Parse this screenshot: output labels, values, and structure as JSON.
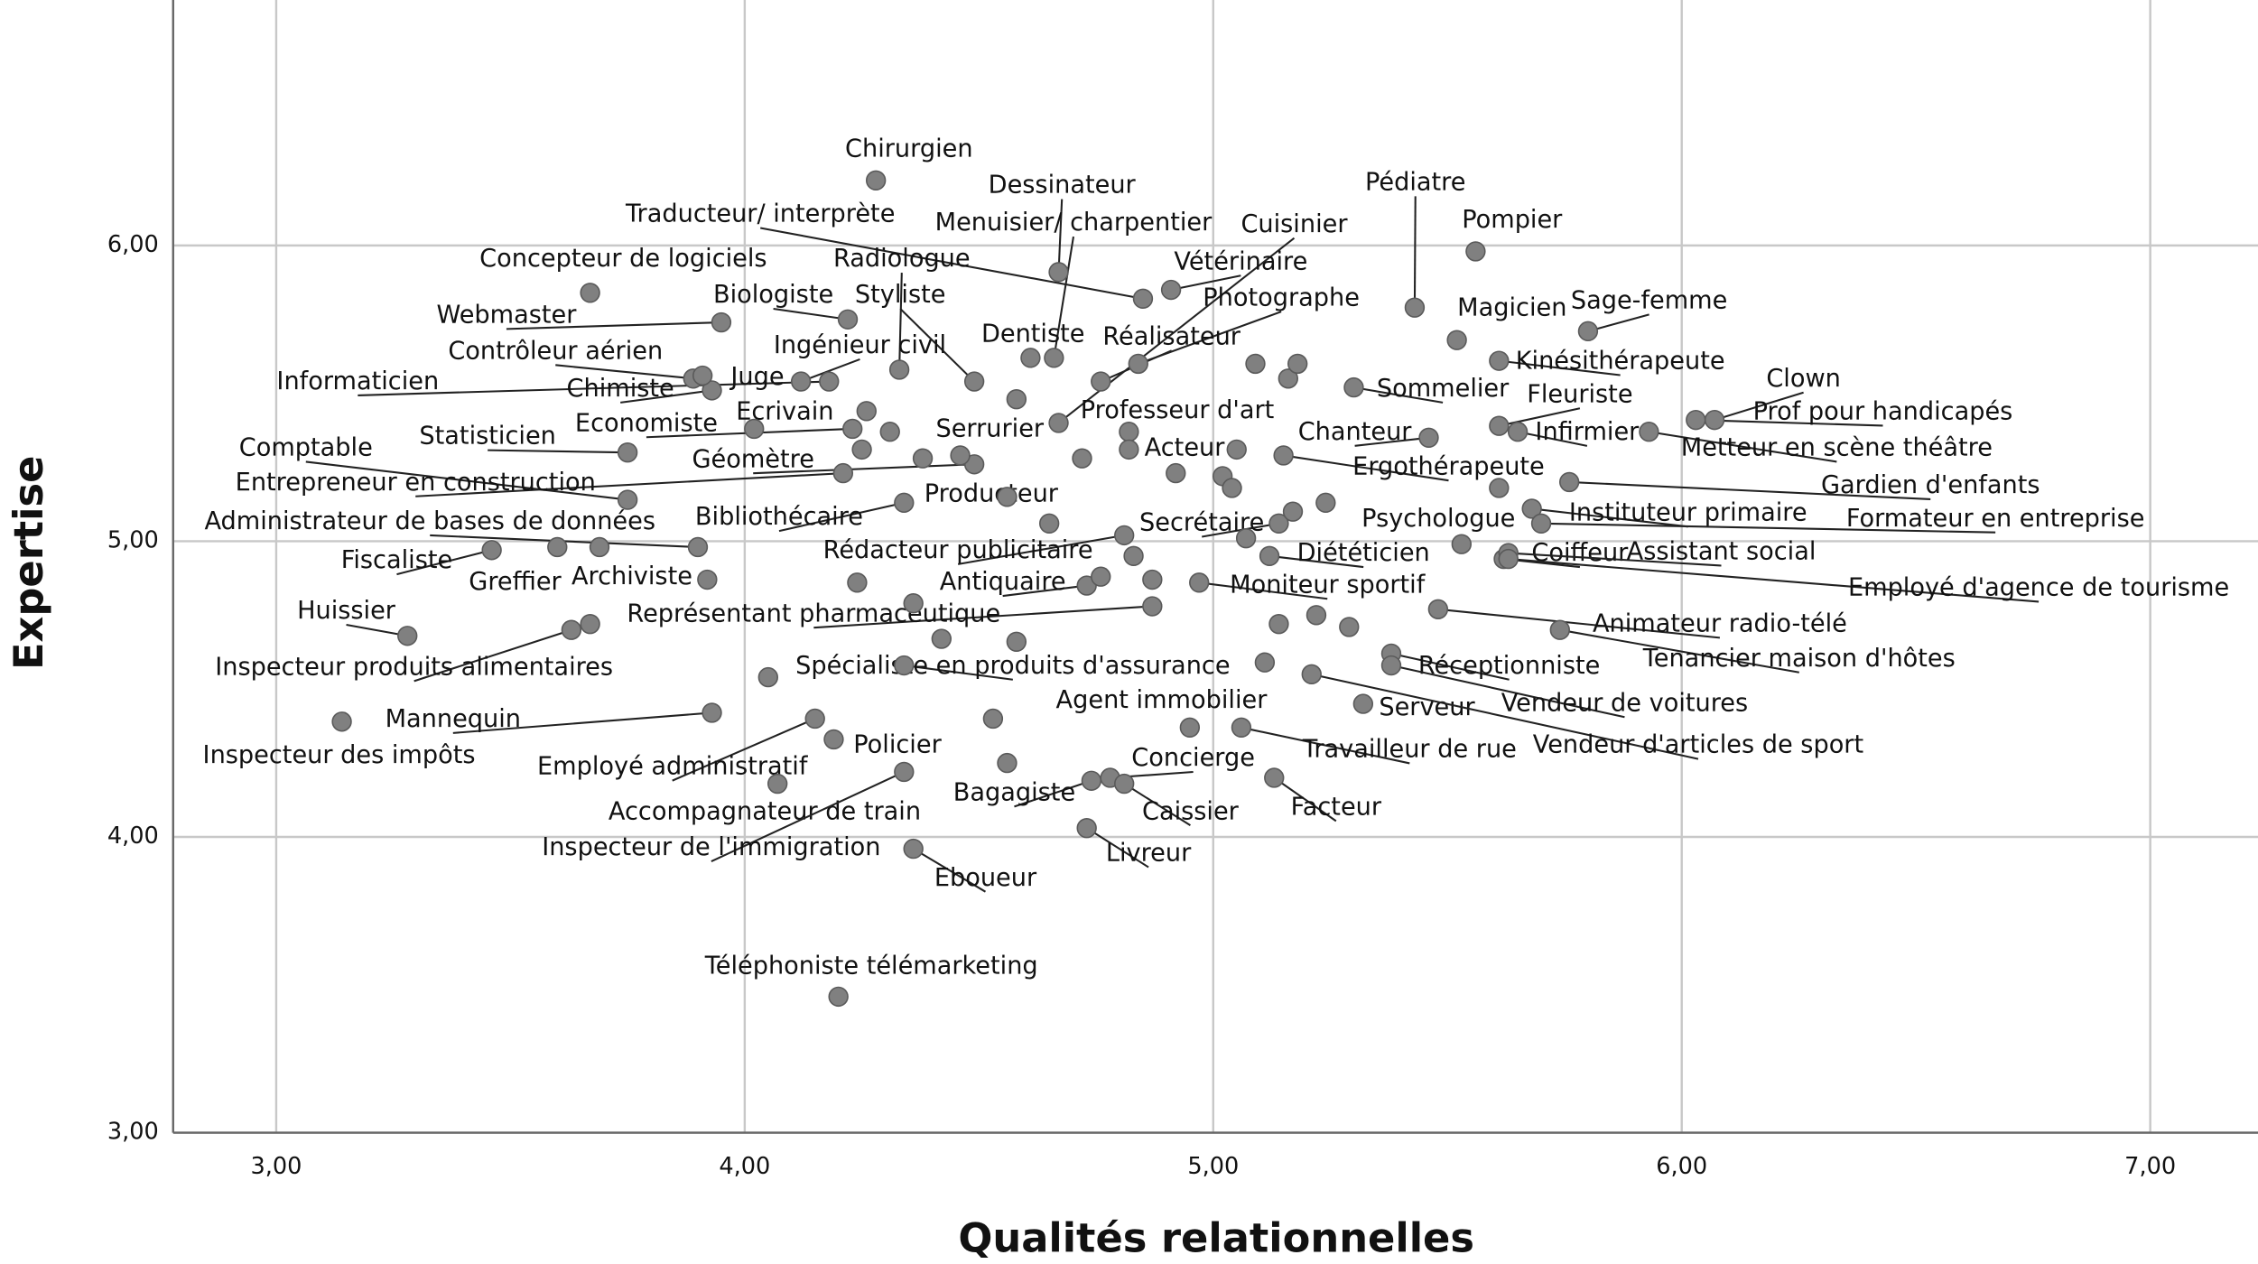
{
  "chart_data": {
    "type": "scatter",
    "xlabel": "Qualités relationnelles",
    "ylabel": "Expertise",
    "color": "#808080",
    "grid": true,
    "xlim": [
      2.78,
      7.23
    ],
    "ylim": [
      3,
      6.83
    ],
    "xticks": [
      {
        "value": 3,
        "label": "3,00"
      },
      {
        "value": 4,
        "label": "4,00"
      },
      {
        "value": 5,
        "label": "5,00"
      },
      {
        "value": 6,
        "label": "6,00"
      },
      {
        "value": 7,
        "label": "7,00"
      }
    ],
    "yticks": [
      {
        "value": 3,
        "label": "3,00"
      },
      {
        "value": 4,
        "label": "4,00"
      },
      {
        "value": 5,
        "label": "5,00"
      },
      {
        "value": 6,
        "label": "6,00"
      }
    ],
    "labels": [
      "Chirurgien",
      "Pompier",
      "Pédiatre",
      "Dessinateur",
      "Traducteur/ interprète",
      "Menuisier/ charpentier",
      "Cuisinier",
      "Vétérinaire",
      "Photographe",
      "Concepteur de logiciels",
      "Radiologue",
      "Biologiste",
      "Styliste",
      "Webmaster",
      "Magicien",
      "Sage-femme",
      "Contrôleur aérien",
      "Ingénieur civil",
      "Dentiste",
      "Réalisateur",
      "Kinésithérapeute",
      "Clown",
      "Informaticien",
      "Chimiste",
      "Juge",
      "Sommelier",
      "Fleuriste",
      "Ecrivain",
      "Professeur d'art",
      "Prof pour handicapés",
      "Economiste",
      "Serrurier",
      "Chanteur",
      "Infirmier",
      "Statisticien",
      "Comptable",
      "Acteur",
      "Metteur en scène théâtre",
      "Géomètre",
      "Ergothérapeute",
      "Entrepreneur en construction",
      "Gardien d'enfants",
      "Producteur",
      "Administrateur de bases de données",
      "Bibliothécaire",
      "Secrétaire",
      "Psychologue",
      "Instituteur primaire",
      "Formateur en entreprise",
      "Fiscaliste",
      "Rédacteur publicitaire",
      "Diététicien",
      "Coiffeur",
      "Assistant social",
      "Greffier",
      "Archiviste",
      "Antiquaire",
      "Moniteur sportif",
      "Employé d'agence de tourisme",
      "Huissier",
      "Représentant pharmaceutique",
      "Animateur radio-télé",
      "Inspecteur produits alimentaires",
      "Spécialiste en produits d'assurance",
      "Réceptionniste",
      "Tenancier maison d'hôtes",
      "Agent immobilier",
      "Serveur",
      "Vendeur de voitures",
      "Mannequin",
      "Inspecteur des impôts",
      "Policier",
      "Travailleur de rue",
      "Vendeur d'articles de sport",
      "Employé administratif",
      "Concierge",
      "Accompagnateur de train",
      "Bagagiste",
      "Caissier",
      "Facteur",
      "Inspecteur de l'immigration",
      "Livreur",
      "Eboueur",
      "Téléphoniste télémarketing",
      null,
      null,
      null,
      null,
      null,
      null,
      null,
      null,
      null,
      null,
      null,
      null,
      null,
      null,
      null,
      null,
      null,
      null,
      null,
      null,
      null,
      null,
      null,
      null,
      null,
      null,
      null,
      null,
      null,
      null,
      null,
      null,
      null
    ],
    "x": [
      4.28,
      5.56,
      5.43,
      4.67,
      4.85,
      4.66,
      4.67,
      4.91,
      4.84,
      3.67,
      4.33,
      4.22,
      4.49,
      3.95,
      5.52,
      5.8,
      3.89,
      4.12,
      4.61,
      4.76,
      5.61,
      6.07,
      4.18,
      3.93,
      3.91,
      5.3,
      5.61,
      4.02,
      4.82,
      6.03,
      4.23,
      4.58,
      5.46,
      5.65,
      3.75,
      3.75,
      5.05,
      5.93,
      4.49,
      5.15,
      4.21,
      5.76,
      4.56,
      3.9,
      4.34,
      5.14,
      5.53,
      5.68,
      5.7,
      3.46,
      4.81,
      5.12,
      5.62,
      5.63,
      3.6,
      3.69,
      4.73,
      4.97,
      5.63,
      3.28,
      4.87,
      5.48,
      3.63,
      4.34,
      5.38,
      5.74,
      4.95,
      5.32,
      5.38,
      3.93,
      3.14,
      4.19,
      5.06,
      5.21,
      4.15,
      4.78,
      4.07,
      4.74,
      4.81,
      5.13,
      4.34,
      4.73,
      4.36,
      4.2,
      4.26,
      4.31,
      4.25,
      4.38,
      4.46,
      5.09,
      5.16,
      5.18,
      4.82,
      4.92,
      5.02,
      5.04,
      4.72,
      4.65,
      5.07,
      5.17,
      5.24,
      4.83,
      4.87,
      4.76,
      4.24,
      3.92,
      4.36,
      4.42,
      4.58,
      3.67,
      5.14,
      5.22,
      5.29,
      5.11,
      4.05,
      4.53,
      4.56,
      5.61
    ],
    "y": [
      6.22,
      5.98,
      5.79,
      5.91,
      5.82,
      5.62,
      5.4,
      5.85,
      5.6,
      5.84,
      5.58,
      5.75,
      5.54,
      5.74,
      5.68,
      5.71,
      5.55,
      5.54,
      5.62,
      5.54,
      5.61,
      5.41,
      5.54,
      5.51,
      5.56,
      5.52,
      5.39,
      5.38,
      5.37,
      5.41,
      5.38,
      5.48,
      5.35,
      5.37,
      5.3,
      5.14,
      5.31,
      5.37,
      5.26,
      5.29,
      5.23,
      5.2,
      5.15,
      4.98,
      5.13,
      5.06,
      4.99,
      5.11,
      5.06,
      4.97,
      5.02,
      4.95,
      4.94,
      4.96,
      4.98,
      4.98,
      4.85,
      4.86,
      4.94,
      4.68,
      4.78,
      4.77,
      4.7,
      4.58,
      4.62,
      4.7,
      4.37,
      4.45,
      4.58,
      4.42,
      4.39,
      4.33,
      4.37,
      4.55,
      4.4,
      4.2,
      4.18,
      4.19,
      4.18,
      4.2,
      4.22,
      4.03,
      3.96,
      3.46,
      5.44,
      5.37,
      5.31,
      5.28,
      5.29,
      5.6,
      5.55,
      5.6,
      5.31,
      5.23,
      5.22,
      5.18,
      5.28,
      5.06,
      5.01,
      5.1,
      5.13,
      4.95,
      4.87,
      4.88,
      4.86,
      4.87,
      4.79,
      4.67,
      4.66,
      4.72,
      4.72,
      4.75,
      4.71,
      4.59,
      4.54,
      4.4,
      4.25,
      5.18
    ]
  }
}
